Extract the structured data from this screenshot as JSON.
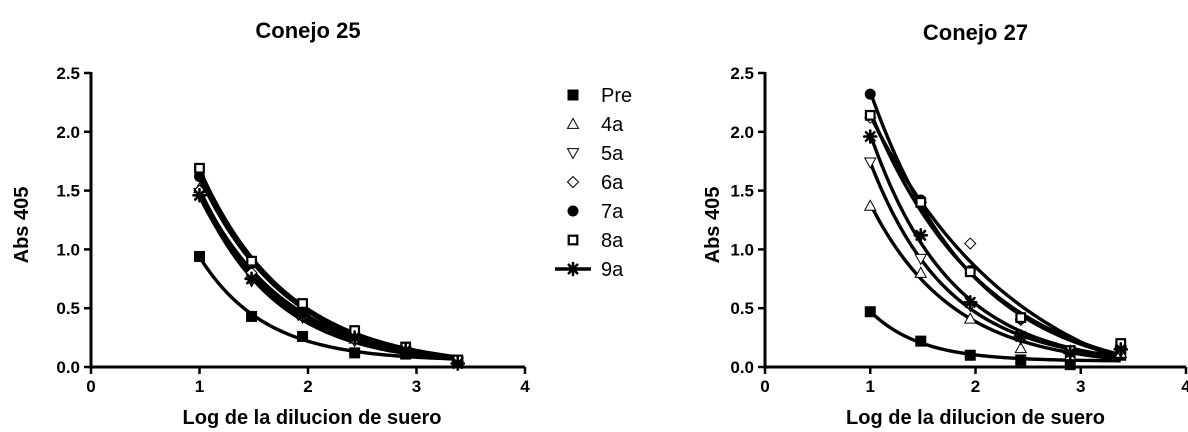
{
  "chart_data": [
    {
      "type": "scatter",
      "title": "Conejo 25",
      "xlabel": "Log de la dilucion de suero",
      "ylabel": "Abs 405",
      "xlim": [
        0,
        4
      ],
      "ylim": [
        0,
        2.5
      ],
      "xticks": [
        "0",
        "1",
        "2",
        "3",
        "4"
      ],
      "yticks": [
        "0.0",
        "0.5",
        "1.0",
        "1.5",
        "2.0",
        "2.5"
      ],
      "grid": false,
      "legend": "right",
      "series": [
        {
          "name": "Pre",
          "marker": "filled-square",
          "x": [
            1,
            1.48,
            1.95,
            2.43,
            2.9,
            3.38
          ],
          "y": [
            0.94,
            0.43,
            0.26,
            0.12,
            0.11,
            0.05
          ]
        },
        {
          "name": "4a",
          "marker": "open-triangle-up",
          "x": [
            1,
            1.48,
            1.95,
            2.43,
            2.9,
            3.38
          ],
          "y": [
            1.52,
            0.78,
            0.45,
            0.24,
            0.14,
            0.05
          ]
        },
        {
          "name": "5a",
          "marker": "open-triangle-down",
          "x": [
            1,
            1.48,
            1.95,
            2.43,
            2.9,
            3.38
          ],
          "y": [
            1.48,
            0.73,
            0.42,
            0.22,
            0.13,
            0.04
          ]
        },
        {
          "name": "6a",
          "marker": "open-diamond",
          "x": [
            1,
            1.48,
            1.95,
            2.43,
            2.9,
            3.38
          ],
          "y": [
            1.5,
            0.8,
            0.47,
            0.27,
            0.16,
            0.05
          ]
        },
        {
          "name": "7a",
          "marker": "filled-circle",
          "x": [
            1,
            1.48,
            1.95,
            2.43,
            2.9,
            3.38
          ],
          "y": [
            1.62,
            0.88,
            0.5,
            0.29,
            0.16,
            0.05
          ]
        },
        {
          "name": "8a",
          "marker": "open-square",
          "x": [
            1,
            1.48,
            1.95,
            2.43,
            2.9,
            3.38
          ],
          "y": [
            1.69,
            0.9,
            0.54,
            0.31,
            0.17,
            0.06
          ]
        },
        {
          "name": "9a",
          "marker": "star",
          "x": [
            1,
            1.48,
            1.95,
            2.43,
            2.9,
            3.38
          ],
          "y": [
            1.46,
            0.75,
            0.44,
            0.25,
            0.14,
            0.03
          ]
        }
      ]
    },
    {
      "type": "scatter",
      "title": "Conejo 27",
      "xlabel": "Log de la dilucion de suero",
      "ylabel": "Abs 405",
      "xlim": [
        0,
        4
      ],
      "ylim": [
        0,
        2.5
      ],
      "xticks": [
        "0",
        "1",
        "2",
        "3",
        "4"
      ],
      "yticks": [
        "0.0",
        "0.5",
        "1.0",
        "1.5",
        "2.0",
        "2.5"
      ],
      "grid": false,
      "series": [
        {
          "name": "Pre",
          "marker": "filled-square",
          "x": [
            1,
            1.48,
            1.95,
            2.43,
            2.9,
            3.38
          ],
          "y": [
            0.47,
            0.22,
            0.1,
            0.06,
            0.02,
            0.1
          ]
        },
        {
          "name": "4a",
          "marker": "open-triangle-up",
          "x": [
            1,
            1.48,
            1.95,
            2.43,
            2.9,
            3.38
          ],
          "y": [
            1.37,
            0.8,
            0.41,
            0.16,
            0.1,
            0.12
          ]
        },
        {
          "name": "5a",
          "marker": "open-triangle-down",
          "x": [
            1,
            1.48,
            1.95,
            2.43,
            2.9,
            3.38
          ],
          "y": [
            1.74,
            0.92,
            0.52,
            0.24,
            0.12,
            0.13
          ]
        },
        {
          "name": "6a",
          "marker": "open-diamond",
          "x": [
            1,
            1.48,
            1.95,
            2.43,
            2.9,
            3.38
          ],
          "y": [
            2.12,
            1.4,
            1.05,
            0.4,
            0.14,
            0.18
          ]
        },
        {
          "name": "7a",
          "marker": "filled-circle",
          "x": [
            1,
            1.48,
            1.95,
            2.43,
            2.9,
            3.38
          ],
          "y": [
            2.32,
            1.42,
            0.82,
            0.41,
            0.13,
            0.18
          ]
        },
        {
          "name": "8a",
          "marker": "open-square",
          "x": [
            1,
            1.48,
            1.95,
            2.43,
            2.9,
            3.38
          ],
          "y": [
            2.14,
            1.4,
            0.81,
            0.42,
            0.14,
            0.2
          ]
        },
        {
          "name": "9a",
          "marker": "star",
          "x": [
            1,
            1.48,
            1.95,
            2.43,
            2.9,
            3.38
          ],
          "y": [
            1.96,
            1.12,
            0.55,
            0.26,
            0.12,
            0.15
          ]
        }
      ]
    }
  ]
}
